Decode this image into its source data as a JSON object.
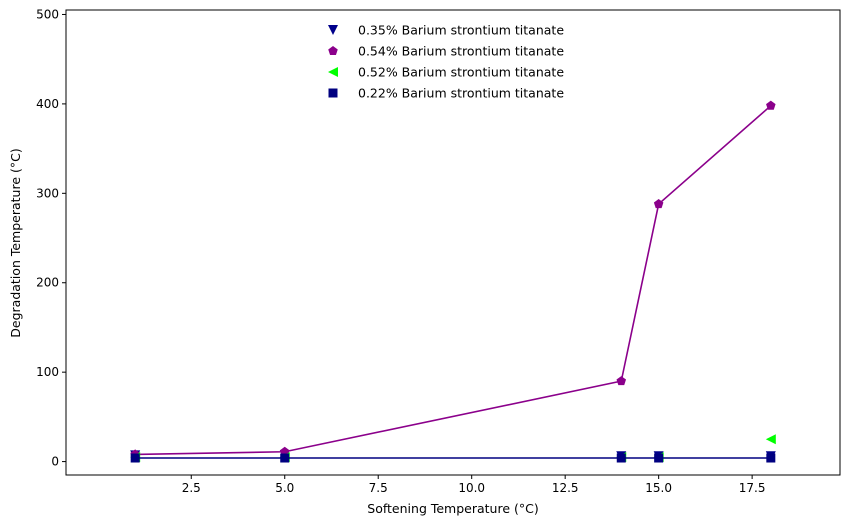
{
  "chart_data": {
    "type": "line",
    "title": "",
    "xlabel": "Softening Temperature (°C)",
    "ylabel": "Degradation Temperature (°C)",
    "xlim": [
      -0.85,
      19.85
    ],
    "ylim": [
      -15,
      505
    ],
    "xticks": [
      2.5,
      5.0,
      7.5,
      10.0,
      12.5,
      15.0,
      17.5
    ],
    "xtick_labels": [
      "2.5",
      "5.0",
      "7.5",
      "10.0",
      "12.5",
      "15.0",
      "17.5"
    ],
    "yticks": [
      0,
      100,
      200,
      300,
      400,
      500
    ],
    "ytick_labels": [
      "0",
      "100",
      "200",
      "300",
      "400",
      "500"
    ],
    "grid": false,
    "legend_position": "top-center",
    "series": [
      {
        "name": "0.35% Barium strontium titanate",
        "color": "#00008B",
        "marker": "triangle-down",
        "line": false,
        "x": [
          1,
          5,
          14,
          15,
          18
        ],
        "y": [
          7,
          7,
          6,
          6,
          6
        ]
      },
      {
        "name": "0.54% Barium strontium titanate",
        "color": "#8B008B",
        "marker": "pentagon",
        "line": true,
        "x": [
          1,
          5,
          14,
          15,
          18
        ],
        "y": [
          8,
          11,
          90,
          288,
          398
        ]
      },
      {
        "name": "0.52% Barium strontium titanate",
        "color": "#00FF00",
        "marker": "triangle-left",
        "line": false,
        "x": [
          1,
          5,
          14,
          15,
          18
        ],
        "y": [
          5,
          5,
          5,
          5,
          25
        ]
      },
      {
        "name": "0.22% Barium strontium titanate",
        "color": "#000080",
        "marker": "square",
        "line": true,
        "x": [
          1,
          5,
          14,
          15,
          18
        ],
        "y": [
          4,
          4,
          4,
          4,
          4
        ]
      }
    ]
  }
}
